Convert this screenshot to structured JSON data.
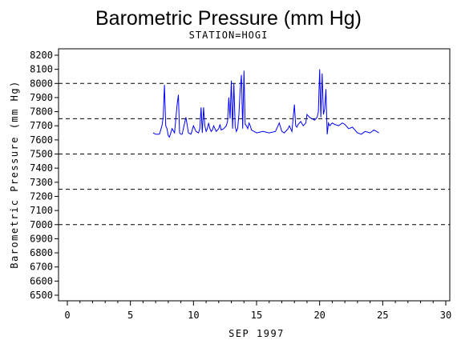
{
  "chart_data": {
    "type": "line",
    "title": "Barometric Pressure (mm Hg)",
    "subtitle": "STATION=HOGI",
    "xlabel": "SEP 1997",
    "ylabel": "Barometric Pressure (mm Hg)",
    "xlim": [
      0,
      30
    ],
    "ylim": [
      6500,
      8200
    ],
    "x_ticks": [
      "0",
      "5",
      "10",
      "15",
      "20",
      "25",
      "30"
    ],
    "y_ticks": [
      "6500",
      "6600",
      "6700",
      "6800",
      "6900",
      "7000",
      "7100",
      "7200",
      "7300",
      "7400",
      "7500",
      "7600",
      "7700",
      "7800",
      "7900",
      "8000",
      "8100",
      "8200"
    ],
    "reference_lines": [
      8000,
      7750,
      7500,
      7250,
      7000
    ],
    "line_color": "#0000ff",
    "series": [
      {
        "x": [
          6.8,
          7.0,
          7.3,
          7.5,
          7.6,
          7.7,
          7.8,
          7.9,
          8.0,
          8.1,
          8.3,
          8.5,
          8.7,
          8.8,
          8.9,
          9.0,
          9.1,
          9.2,
          9.4,
          9.6,
          9.8,
          10.0,
          10.2,
          10.4,
          10.5,
          10.6,
          10.7,
          10.8,
          10.9,
          11.0,
          11.1,
          11.2,
          11.3,
          11.4,
          11.5,
          11.6,
          11.8,
          12.0,
          12.1,
          12.2,
          12.4,
          12.6,
          12.7,
          12.8,
          12.9,
          13.0,
          13.1,
          13.2,
          13.3,
          13.4,
          13.5,
          13.6,
          13.7,
          13.8,
          13.9,
          14.0,
          14.1,
          14.2,
          14.3,
          14.4,
          14.5,
          14.6,
          14.8,
          15.0,
          15.5,
          16.0,
          16.5,
          16.8,
          17.0,
          17.2,
          17.5,
          17.6,
          17.8,
          18.0,
          18.1,
          18.2,
          18.3,
          18.5,
          18.7,
          18.9,
          19.0,
          19.2,
          19.4,
          19.6,
          19.8,
          19.9,
          20.0,
          20.1,
          20.2,
          20.3,
          20.4,
          20.5,
          20.6,
          20.7,
          20.8,
          21.0,
          21.2,
          21.5,
          21.8,
          22.0,
          22.3,
          22.6,
          23.0,
          23.3,
          23.6,
          24.0,
          24.3,
          24.7
        ],
        "y": [
          7650,
          7640,
          7640,
          7700,
          7760,
          7990,
          7700,
          7680,
          7630,
          7620,
          7680,
          7650,
          7850,
          7920,
          7650,
          7640,
          7640,
          7680,
          7760,
          7650,
          7640,
          7700,
          7660,
          7650,
          7680,
          7830,
          7650,
          7830,
          7700,
          7660,
          7680,
          7720,
          7680,
          7660,
          7670,
          7700,
          7660,
          7680,
          7710,
          7670,
          7680,
          7700,
          7730,
          7900,
          7750,
          8020,
          7680,
          8000,
          7700,
          7660,
          7680,
          7780,
          7950,
          8060,
          7680,
          8090,
          7710,
          7700,
          7680,
          7720,
          7700,
          7670,
          7660,
          7650,
          7660,
          7650,
          7660,
          7720,
          7660,
          7650,
          7680,
          7700,
          7660,
          7850,
          7700,
          7690,
          7710,
          7730,
          7700,
          7720,
          7780,
          7760,
          7750,
          7740,
          7760,
          7800,
          8100,
          7760,
          8070,
          7780,
          7820,
          7960,
          7640,
          7720,
          7700,
          7720,
          7710,
          7700,
          7720,
          7710,
          7680,
          7690,
          7650,
          7640,
          7660,
          7650,
          7670,
          7650
        ]
      }
    ]
  }
}
